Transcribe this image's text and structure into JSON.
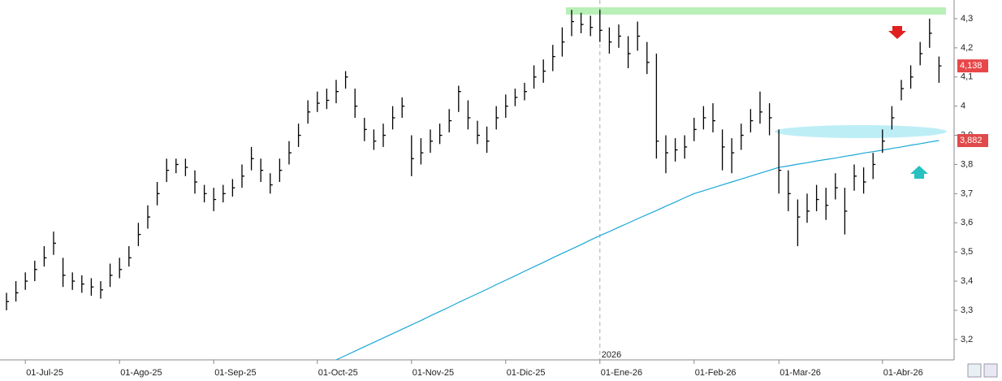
{
  "chart_data": {
    "type": "ohlc",
    "categories": [
      null,
      null,
      "01-Jul-25",
      null,
      null,
      null,
      null,
      null,
      null,
      null,
      null,
      null,
      "01-Ago-25",
      null,
      null,
      null,
      null,
      null,
      null,
      null,
      null,
      null,
      "01-Sep-25",
      null,
      null,
      null,
      null,
      null,
      null,
      null,
      null,
      null,
      null,
      "01-Oct-25",
      null,
      null,
      null,
      null,
      null,
      null,
      null,
      null,
      null,
      "01-Nov-25",
      null,
      null,
      null,
      null,
      null,
      null,
      null,
      null,
      null,
      "01-Dic-25",
      null,
      null,
      null,
      null,
      null,
      null,
      null,
      null,
      null,
      "01-Ene-26",
      null,
      null,
      null,
      null,
      null,
      null,
      null,
      null,
      null,
      "01-Feb-26",
      null,
      null,
      null,
      null,
      null,
      null,
      null,
      null,
      "01-Mar-26",
      null,
      null,
      null,
      null,
      null,
      null,
      null,
      null,
      null,
      null,
      "01-Abr-26",
      null,
      null,
      null,
      null,
      null,
      null
    ],
    "year_marker": {
      "label": "2026",
      "index": 63
    },
    "ohlc": {
      "color": "#000000",
      "high": [
        3.36,
        3.4,
        3.43,
        3.47,
        3.52,
        3.57,
        3.48,
        3.43,
        3.42,
        3.41,
        3.4,
        3.46,
        3.48,
        3.52,
        3.6,
        3.66,
        3.74,
        3.82,
        3.82,
        3.82,
        3.78,
        3.73,
        3.72,
        3.73,
        3.75,
        3.8,
        3.86,
        3.82,
        3.77,
        3.82,
        3.88,
        3.94,
        4.02,
        4.05,
        4.06,
        4.09,
        4.12,
        4.06,
        3.96,
        3.92,
        3.94,
        4.0,
        4.03,
        3.9,
        3.89,
        3.92,
        3.94,
        3.99,
        4.07,
        4.02,
        3.95,
        3.93,
        4.0,
        4.04,
        4.06,
        4.08,
        4.14,
        4.16,
        4.21,
        4.27,
        4.33,
        4.32,
        4.31,
        4.33,
        4.27,
        4.28,
        4.24,
        4.29,
        4.22,
        4.18,
        3.9,
        3.89,
        3.9,
        3.96,
        4.0,
        4.01,
        3.92,
        3.89,
        3.94,
        3.99,
        4.05,
        4.01,
        3.92,
        3.78,
        3.68,
        3.7,
        3.73,
        3.72,
        3.77,
        3.72,
        3.8,
        3.79,
        3.84,
        3.92,
        4.0,
        4.09,
        4.14,
        4.22,
        4.3,
        4.17
      ],
      "low": [
        3.3,
        3.33,
        3.37,
        3.4,
        3.45,
        3.49,
        3.38,
        3.37,
        3.36,
        3.35,
        3.34,
        3.38,
        3.41,
        3.45,
        3.52,
        3.58,
        3.66,
        3.74,
        3.77,
        3.76,
        3.7,
        3.67,
        3.64,
        3.67,
        3.69,
        3.72,
        3.78,
        3.74,
        3.7,
        3.74,
        3.8,
        3.86,
        3.94,
        3.98,
        3.99,
        4.01,
        4.06,
        3.96,
        3.88,
        3.85,
        3.86,
        3.92,
        3.96,
        3.76,
        3.8,
        3.84,
        3.87,
        3.91,
        3.98,
        3.92,
        3.87,
        3.84,
        3.92,
        3.96,
        4.0,
        4.02,
        4.06,
        4.08,
        4.12,
        4.17,
        4.24,
        4.25,
        4.24,
        4.22,
        4.18,
        4.2,
        4.13,
        4.19,
        4.11,
        3.82,
        3.77,
        3.81,
        3.82,
        3.88,
        3.92,
        3.91,
        3.78,
        3.77,
        3.85,
        3.91,
        3.94,
        3.9,
        3.7,
        3.64,
        3.52,
        3.6,
        3.64,
        3.61,
        3.68,
        3.56,
        3.71,
        3.7,
        3.75,
        3.84,
        3.92,
        4.02,
        4.06,
        4.14,
        4.2,
        4.08
      ],
      "close": [
        3.33,
        3.36,
        3.4,
        3.44,
        3.48,
        3.53,
        3.42,
        3.4,
        3.39,
        3.38,
        3.37,
        3.42,
        3.44,
        3.48,
        3.56,
        3.62,
        3.7,
        3.78,
        3.8,
        3.79,
        3.74,
        3.7,
        3.68,
        3.7,
        3.72,
        3.76,
        3.82,
        3.78,
        3.73,
        3.78,
        3.84,
        3.9,
        3.98,
        4.01,
        4.02,
        4.05,
        4.1,
        4.0,
        3.92,
        3.88,
        3.9,
        3.96,
        4.0,
        3.82,
        3.84,
        3.88,
        3.9,
        3.95,
        4.05,
        3.96,
        3.9,
        3.88,
        3.96,
        4.0,
        4.03,
        4.05,
        4.1,
        4.12,
        4.17,
        4.22,
        4.29,
        4.28,
        4.27,
        4.26,
        4.22,
        4.24,
        4.18,
        4.24,
        4.15,
        3.88,
        3.84,
        3.85,
        3.86,
        3.92,
        3.96,
        3.95,
        3.86,
        3.84,
        3.9,
        3.95,
        3.98,
        3.96,
        3.78,
        3.7,
        3.62,
        3.64,
        3.68,
        3.66,
        3.72,
        3.64,
        3.76,
        3.74,
        3.8,
        3.88,
        3.96,
        4.06,
        4.1,
        4.18,
        4.25,
        4.138
      ],
      "last_label": "4,138",
      "label_color": "#e8474a"
    },
    "moving_average": {
      "color": "#1aa7d8",
      "values": [
        null,
        null,
        null,
        null,
        null,
        null,
        null,
        null,
        null,
        null,
        null,
        null,
        null,
        null,
        null,
        null,
        null,
        null,
        null,
        null,
        null,
        null,
        null,
        null,
        null,
        null,
        null,
        null,
        null,
        null,
        null,
        null,
        null,
        null,
        null,
        3.13,
        3.145,
        3.16,
        3.175,
        3.19,
        3.205,
        3.22,
        3.235,
        3.25,
        3.265,
        3.281,
        3.296,
        3.311,
        3.327,
        3.342,
        3.357,
        3.372,
        3.388,
        3.403,
        3.418,
        3.434,
        3.449,
        3.464,
        3.48,
        3.495,
        3.51,
        3.525,
        3.541,
        3.556,
        3.57,
        3.585,
        3.599,
        3.614,
        3.628,
        3.642,
        3.657,
        3.671,
        3.686,
        3.7,
        3.71,
        3.72,
        3.73,
        3.74,
        3.75,
        3.76,
        3.77,
        3.78,
        3.79,
        3.795,
        3.801,
        3.806,
        3.812,
        3.817,
        3.822,
        3.828,
        3.833,
        3.839,
        3.844,
        3.849,
        3.855,
        3.86,
        3.866,
        3.871,
        3.877,
        3.882
      ],
      "last_label": "3,882",
      "label_color": "#e04a4a"
    },
    "ylim": [
      3.13,
      4.35
    ],
    "yticks": [
      {
        "value": 3.2,
        "label": "3,2"
      },
      {
        "value": 3.3,
        "label": "3,3"
      },
      {
        "value": 3.4,
        "label": "3,4"
      },
      {
        "value": 3.5,
        "label": "3,5"
      },
      {
        "value": 3.6,
        "label": "3,6"
      },
      {
        "value": 3.7,
        "label": "3,7"
      },
      {
        "value": 3.8,
        "label": "3,8"
      },
      {
        "value": 3.9,
        "label": "3,9"
      },
      4,
      {
        "value": 4.1,
        "label": "4,1"
      },
      {
        "value": 4.2,
        "label": "4,2"
      },
      {
        "value": 4.3,
        "label": "4,3"
      }
    ]
  }
}
